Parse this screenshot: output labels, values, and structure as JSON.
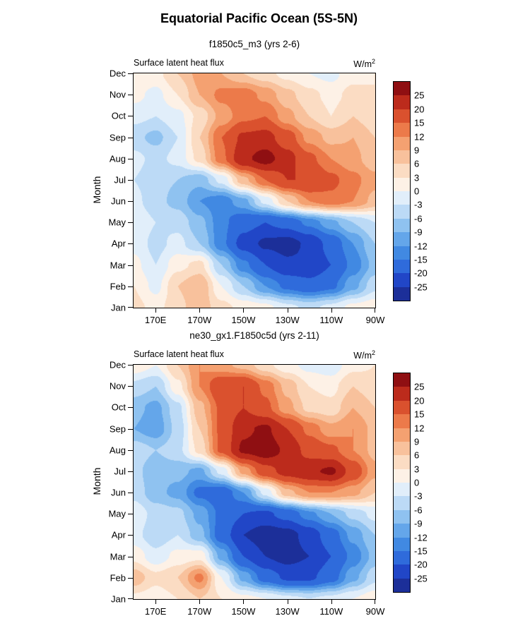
{
  "figure": {
    "title": "Equatorial Pacific Ocean (5S-5N)"
  },
  "chart_data": [
    {
      "type": "heatmap",
      "title": "f1850c5_m3 (yrs 2-6)",
      "field_label": "Surface latent heat flux",
      "units_base": "W/m",
      "units_exp": "2",
      "ylabel": "Month",
      "months": [
        "Jan",
        "Feb",
        "Mar",
        "Apr",
        "May",
        "Jun",
        "Jul",
        "Aug",
        "Sep",
        "Oct",
        "Nov",
        "Dec"
      ],
      "x_ticks": [
        {
          "label": "170E",
          "lon": 170
        },
        {
          "label": "170W",
          "lon": 190
        },
        {
          "label": "150W",
          "lon": 210
        },
        {
          "label": "130W",
          "lon": 230
        },
        {
          "label": "110W",
          "lon": 250
        },
        {
          "label": "90W",
          "lon": 270
        }
      ],
      "lon_range": [
        160,
        270
      ],
      "levels": [
        -25,
        -20,
        -15,
        -12,
        -9,
        -6,
        -3,
        0,
        3,
        6,
        9,
        12,
        15,
        20,
        25
      ],
      "colors": [
        "#1c2f99",
        "#2146c7",
        "#2f6bdb",
        "#4189e2",
        "#64a6ea",
        "#8fc2f0",
        "#bcdaf6",
        "#e1eefa",
        "#fdf1e6",
        "#fbdcc3",
        "#f8c19c",
        "#f4a171",
        "#ec7a4a",
        "#da512e",
        "#bc2b1c",
        "#8f0f12"
      ],
      "values": [
        [
          4,
          2,
          5,
          8,
          4,
          2,
          1,
          -2,
          -4,
          -2,
          1,
          2
        ],
        [
          3,
          -1,
          6,
          9,
          0,
          -6,
          -12,
          -16,
          -18,
          -16,
          -10,
          -4
        ],
        [
          1,
          -3,
          2,
          4,
          -6,
          -14,
          -20,
          -24,
          -24,
          -20,
          -14,
          -8
        ],
        [
          -1,
          -4,
          -2,
          -6,
          -14,
          -22,
          -26,
          -27,
          -24,
          -18,
          -12,
          -6
        ],
        [
          0,
          -3,
          -4,
          -8,
          -14,
          -18,
          -20,
          -18,
          -14,
          -10,
          -6,
          -3
        ],
        [
          -2,
          -5,
          -7,
          -12,
          -14,
          -10,
          -2,
          6,
          12,
          14,
          12,
          8
        ],
        [
          -3,
          -5,
          -6,
          -8,
          -2,
          8,
          15,
          20,
          20,
          16,
          13,
          10
        ],
        [
          -2,
          -4,
          -2,
          4,
          14,
          24,
          27,
          22,
          16,
          12,
          10,
          7
        ],
        [
          -5,
          -7,
          -3,
          6,
          15,
          21,
          22,
          17,
          11,
          8,
          9,
          6
        ],
        [
          -2,
          -3,
          -1,
          4,
          10,
          14,
          15,
          10,
          6,
          3,
          6,
          4
        ],
        [
          1,
          -1,
          3,
          9,
          13,
          14,
          11,
          7,
          4,
          2,
          4,
          3
        ],
        [
          3,
          2,
          6,
          10,
          9,
          6,
          4,
          2,
          0,
          -1,
          2,
          3
        ]
      ]
    },
    {
      "type": "heatmap",
      "title": "ne30_gx1.F1850c5d (yrs 2-11)",
      "field_label": "Surface latent heat flux",
      "units_base": "W/m",
      "units_exp": "2",
      "ylabel": "Month",
      "months": [
        "Jan",
        "Feb",
        "Mar",
        "Apr",
        "May",
        "Jun",
        "Jul",
        "Aug",
        "Sep",
        "Oct",
        "Nov",
        "Dec"
      ],
      "x_ticks": [
        {
          "label": "170E",
          "lon": 170
        },
        {
          "label": "170W",
          "lon": 190
        },
        {
          "label": "150W",
          "lon": 210
        },
        {
          "label": "130W",
          "lon": 230
        },
        {
          "label": "110W",
          "lon": 250
        },
        {
          "label": "90W",
          "lon": 270
        }
      ],
      "lon_range": [
        160,
        270
      ],
      "levels": [
        -25,
        -20,
        -15,
        -12,
        -9,
        -6,
        -3,
        0,
        3,
        6,
        9,
        12,
        15,
        20,
        25
      ],
      "colors": [
        "#1c2f99",
        "#2146c7",
        "#2f6bdb",
        "#4189e2",
        "#64a6ea",
        "#8fc2f0",
        "#bcdaf6",
        "#e1eefa",
        "#fdf1e6",
        "#fbdcc3",
        "#f8c19c",
        "#f4a171",
        "#ec7a4a",
        "#da512e",
        "#bc2b1c",
        "#8f0f12"
      ],
      "values": [
        [
          2,
          1,
          3,
          6,
          3,
          1,
          0,
          -2,
          -3,
          -2,
          0,
          2
        ],
        [
          8,
          4,
          6,
          13,
          0,
          -10,
          -17,
          -21,
          -21,
          -17,
          -10,
          -4
        ],
        [
          2,
          -2,
          1,
          2,
          -10,
          -20,
          -25,
          -27,
          -25,
          -20,
          -14,
          -8
        ],
        [
          -2,
          -5,
          -3,
          -8,
          -17,
          -25,
          -28,
          -27,
          -23,
          -17,
          -11,
          -6
        ],
        [
          -1,
          -4,
          -5,
          -10,
          -16,
          -20,
          -21,
          -18,
          -13,
          -9,
          -5,
          -2
        ],
        [
          -4,
          -8,
          -10,
          -16,
          -18,
          -12,
          -2,
          8,
          12,
          12,
          10,
          6
        ],
        [
          -5,
          -8,
          -8,
          -10,
          -2,
          10,
          18,
          22,
          24,
          26,
          18,
          10
        ],
        [
          -4,
          -6,
          -4,
          4,
          16,
          26,
          28,
          24,
          18,
          16,
          12,
          8
        ],
        [
          -9,
          -11,
          -5,
          6,
          16,
          24,
          26,
          20,
          14,
          10,
          12,
          8
        ],
        [
          -8,
          -10,
          -4,
          8,
          16,
          20,
          16,
          10,
          5,
          4,
          9,
          6
        ],
        [
          -4,
          -6,
          2,
          12,
          19,
          20,
          14,
          8,
          3,
          2,
          6,
          4
        ],
        [
          2,
          0,
          6,
          12,
          10,
          8,
          4,
          1,
          -1,
          -2,
          2,
          3
        ]
      ]
    }
  ]
}
